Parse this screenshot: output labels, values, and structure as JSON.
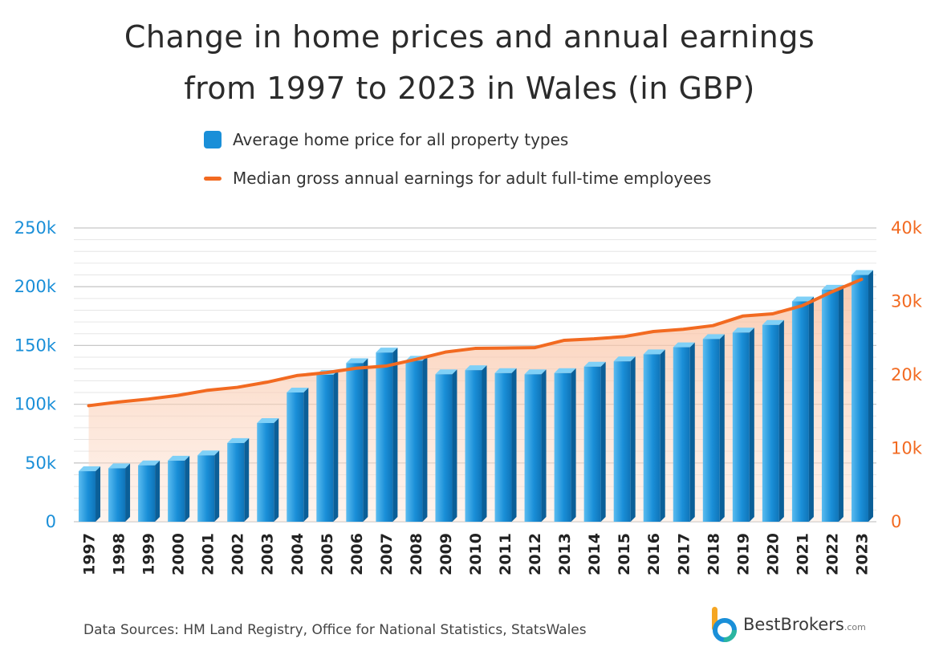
{
  "title_line1": "Change in home prices and annual earnings",
  "title_line2": "from 1997 to 2023 in Wales (in GBP)",
  "footer": "Data Sources: HM Land Registry, Office for National Statistics, StatsWales",
  "brand": {
    "name": "BestBrokers",
    "suffix": ".com"
  },
  "colors": {
    "bar": "#1a8fd8",
    "line": "#f26a21",
    "area": "#fbd3bf",
    "left_axis": "#1a8fd8",
    "right_axis": "#f26a21"
  },
  "chart_data": {
    "type": "bar",
    "categories": [
      "1997",
      "1998",
      "1999",
      "2000",
      "2001",
      "2002",
      "2003",
      "2004",
      "2005",
      "2006",
      "2007",
      "2008",
      "2009",
      "2010",
      "2011",
      "2012",
      "2013",
      "2014",
      "2015",
      "2016",
      "2017",
      "2018",
      "2019",
      "2020",
      "2021",
      "2022",
      "2023"
    ],
    "series": [
      {
        "name": "Average home price for all property types",
        "type": "bar",
        "axis": "left",
        "values": [
          43000,
          45500,
          48000,
          52000,
          56500,
          67000,
          84000,
          110000,
          125000,
          135000,
          144000,
          137000,
          125500,
          129000,
          126500,
          125500,
          126500,
          132000,
          136500,
          142500,
          148500,
          155500,
          161000,
          167500,
          187500,
          197500,
          210000
        ]
      },
      {
        "name": "Median gross annual earnings for adult full-time employees",
        "type": "line",
        "axis": "right",
        "values": [
          15800,
          16300,
          16700,
          17200,
          17900,
          18300,
          19000,
          19900,
          20300,
          20900,
          21200,
          22100,
          23100,
          23600,
          23650,
          23700,
          24700,
          24900,
          25200,
          25900,
          26200,
          26700,
          28000,
          28300,
          29400,
          31300,
          33000
        ]
      }
    ],
    "left_axis": {
      "ylim": [
        0,
        250000
      ],
      "tick_labels": [
        "0",
        "50k",
        "100k",
        "150k",
        "200k",
        "250k"
      ],
      "tick_values": [
        0,
        50000,
        100000,
        150000,
        200000,
        250000
      ]
    },
    "right_axis": {
      "ylim": [
        0,
        40000
      ],
      "tick_labels": [
        "0",
        "10k",
        "20k",
        "30k",
        "40k"
      ],
      "tick_values": [
        0,
        10000,
        20000,
        30000,
        40000
      ]
    },
    "grid": true,
    "legend_position": "top"
  }
}
